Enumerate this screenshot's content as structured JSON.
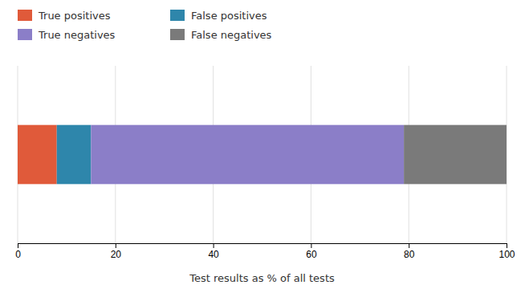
{
  "chart_data": {
    "type": "bar",
    "orientation": "horizontal",
    "stacked": true,
    "categories": [
      null
    ],
    "series": [
      {
        "name": "True positives",
        "color": "#E05A3A",
        "values": [
          8
        ]
      },
      {
        "name": "False positives",
        "color": "#2E86AB",
        "values": [
          7
        ]
      },
      {
        "name": "True negatives",
        "color": "#8B7EC8",
        "values": [
          64
        ]
      },
      {
        "name": "False negatives",
        "color": "#7A7A7A",
        "values": [
          21
        ]
      }
    ],
    "xlabel": "Test results as % of all tests",
    "xlim": [
      0,
      100
    ],
    "xticks": [
      0,
      20,
      40,
      60,
      80,
      100
    ],
    "grid": true,
    "legend": "top-left",
    "tick_labels": "x"
  }
}
